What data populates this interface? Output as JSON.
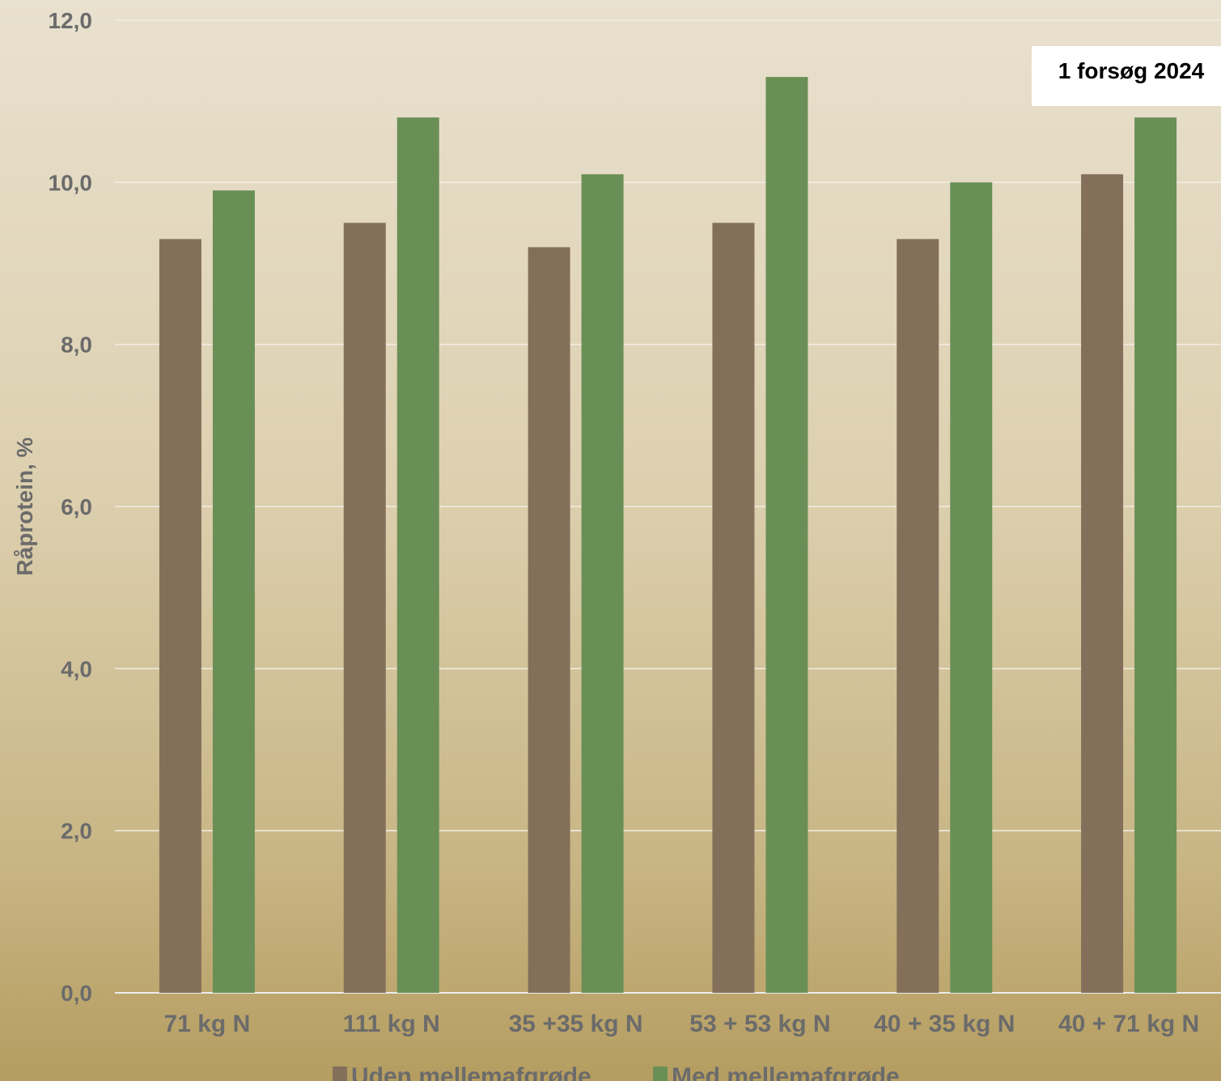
{
  "chart_data": {
    "type": "bar",
    "categories": [
      "71 kg N",
      "111 kg N",
      "35 +35 kg N",
      "53 + 53 kg N",
      "40 + 35 kg N",
      "40 + 71 kg N"
    ],
    "series": [
      {
        "name": "Uden mellemafgrøde",
        "color": "#84705a",
        "values": [
          9.3,
          9.5,
          9.2,
          9.5,
          9.3,
          10.1
        ]
      },
      {
        "name": "Med mellemafgrøde",
        "color": "#6a8f56",
        "values": [
          9.9,
          10.8,
          10.1,
          11.3,
          10.0,
          10.8
        ]
      }
    ],
    "ylabel": "Råprotein, %",
    "ylim": [
      0,
      12
    ],
    "yticks": [
      "0,0",
      "2,0",
      "4,0",
      "6,0",
      "8,0",
      "10,0",
      "12,0"
    ],
    "grid": true,
    "legend": "bottom",
    "annotation": "1 forsøg 2024"
  }
}
